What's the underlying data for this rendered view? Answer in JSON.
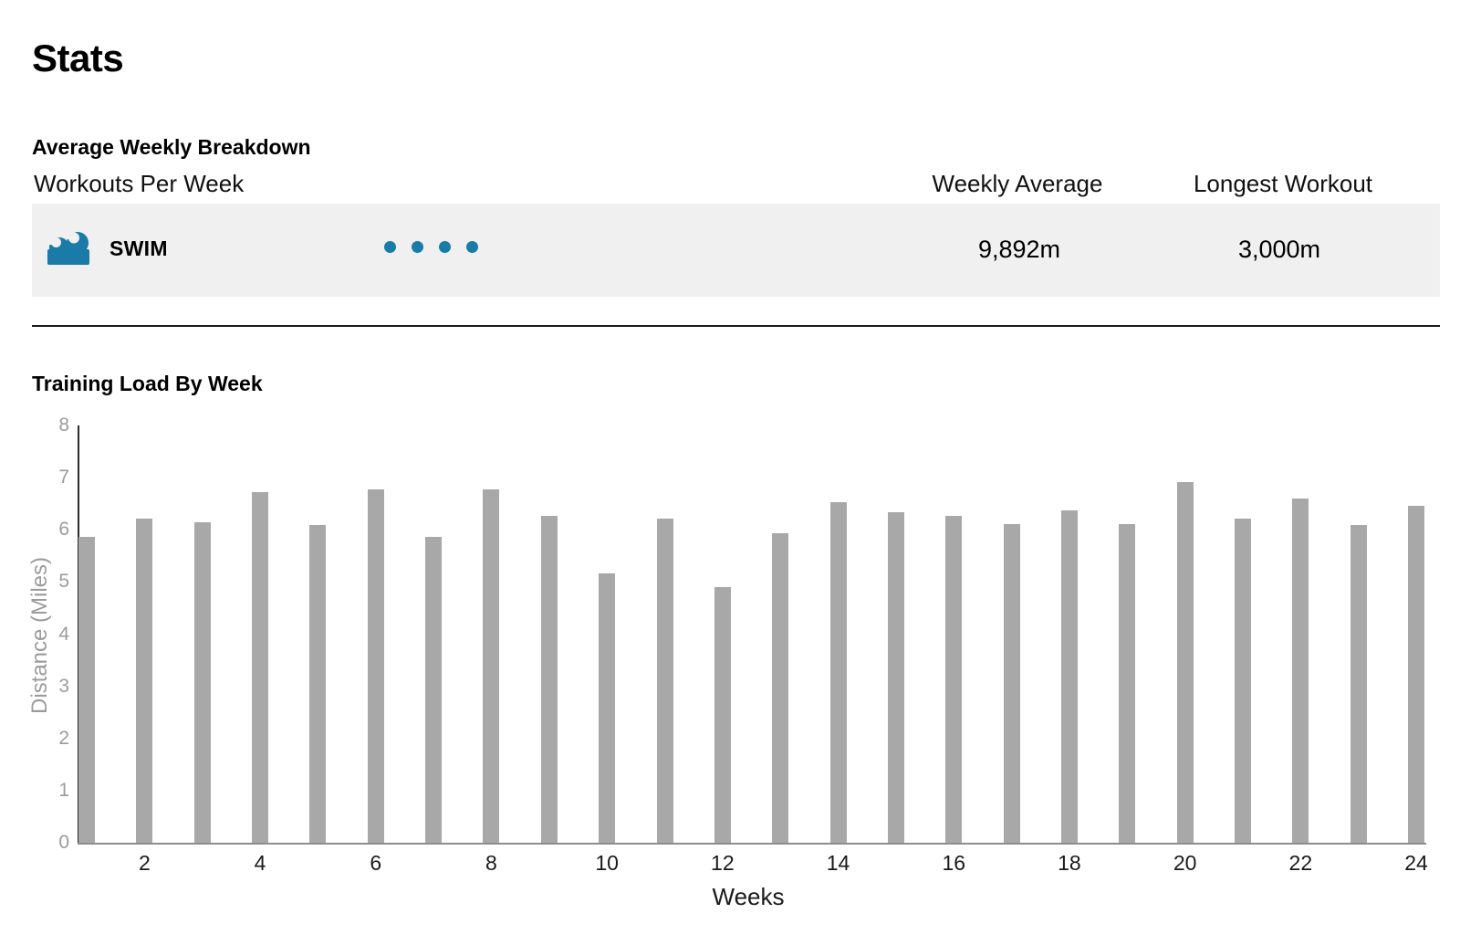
{
  "page": {
    "title": "Stats"
  },
  "breakdown": {
    "heading": "Average Weekly Breakdown",
    "columns": {
      "workouts": "Workouts Per Week",
      "weekly_average": "Weekly Average",
      "longest_workout": "Longest Workout"
    },
    "rows": [
      {
        "sport": "SWIM",
        "icon": "wave-icon",
        "workouts_per_week": 4,
        "weekly_average": "9,892m",
        "longest_workout": "3,000m"
      }
    ]
  },
  "training_load": {
    "heading": "Training Load By Week"
  },
  "chart_data": {
    "type": "bar",
    "title": "Training Load By Week",
    "x": [
      1,
      2,
      3,
      4,
      5,
      6,
      7,
      8,
      9,
      10,
      11,
      12,
      13,
      14,
      15,
      16,
      17,
      18,
      19,
      20,
      21,
      22,
      23,
      24
    ],
    "values": [
      5.87,
      6.22,
      6.15,
      6.72,
      6.09,
      6.78,
      5.87,
      6.78,
      6.27,
      5.17,
      6.22,
      4.9,
      5.94,
      6.53,
      6.34,
      6.27,
      6.11,
      6.37,
      6.11,
      6.92,
      6.22,
      6.6,
      6.09,
      6.46
    ],
    "xlabel": "Weeks",
    "ylabel": "Distance (Miles)",
    "ylim": [
      0,
      8
    ],
    "yticks": [
      0,
      1,
      2,
      3,
      4,
      5,
      6,
      7,
      8
    ],
    "xtick_labels": [
      2,
      4,
      6,
      8,
      10,
      12,
      14,
      16,
      18,
      20,
      22,
      24
    ],
    "grid": false,
    "legend": false,
    "bar_color": "#a9a8a8",
    "axis_text_color": "#9b9b9b"
  },
  "colors": {
    "accent_blue": "#1a7ba9",
    "row_background": "#f0f0f0"
  }
}
